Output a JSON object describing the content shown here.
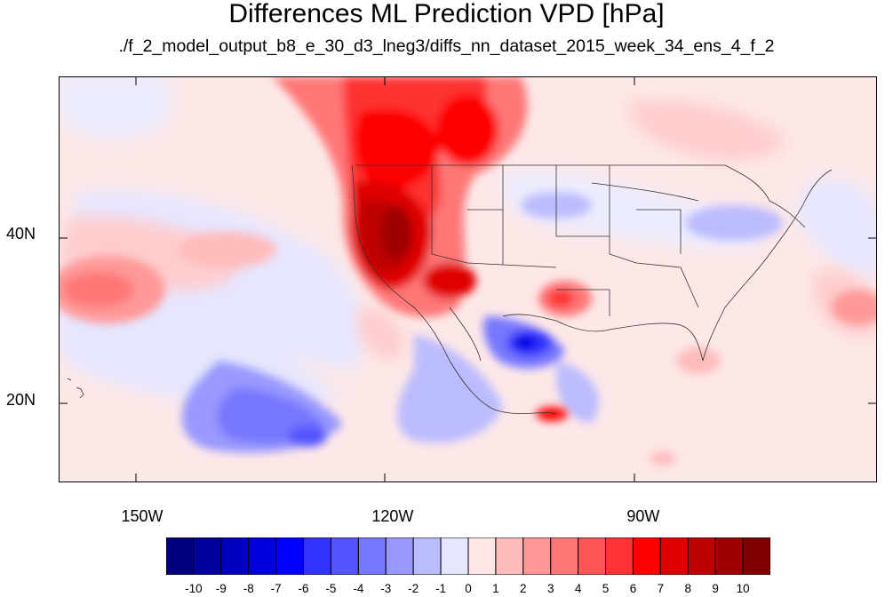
{
  "title": "Differences ML Prediction VPD [hPa]",
  "subtitle": "./f_2_model_output_b8_e_30_d3_lneg3/diffs_nn_dataset_2015_week_34_ens_4_f_2",
  "map": {
    "lon_range": [
      -160,
      -62
    ],
    "lat_range": [
      10,
      59
    ],
    "lon_ticks": [
      {
        "value": -150,
        "label": "150W"
      },
      {
        "value": -120,
        "label": "120W"
      },
      {
        "value": -90,
        "label": "90W"
      }
    ],
    "lat_ticks": [
      {
        "value": 40,
        "label": "40N"
      },
      {
        "value": 20,
        "label": "20N"
      }
    ]
  },
  "colorbar": {
    "labels": [
      "-10",
      "-9",
      "-8",
      "-7",
      "-6",
      "-5",
      "-4",
      "-3",
      "-2",
      "-1",
      "0",
      "1",
      "2",
      "3",
      "4",
      "5",
      "6",
      "7",
      "8",
      "9",
      "10"
    ],
    "colors": [
      "#00007f",
      "#00009f",
      "#0000bf",
      "#0000df",
      "#0000ff",
      "#3333ff",
      "#5555ff",
      "#7777ff",
      "#9999ff",
      "#bbbbff",
      "#e6e6ff",
      "#ffe6e6",
      "#ffbbbb",
      "#ff9999",
      "#ff7777",
      "#ff5555",
      "#ff3333",
      "#ff0000",
      "#df0000",
      "#bf0000",
      "#9f0000",
      "#7f0000"
    ]
  }
}
